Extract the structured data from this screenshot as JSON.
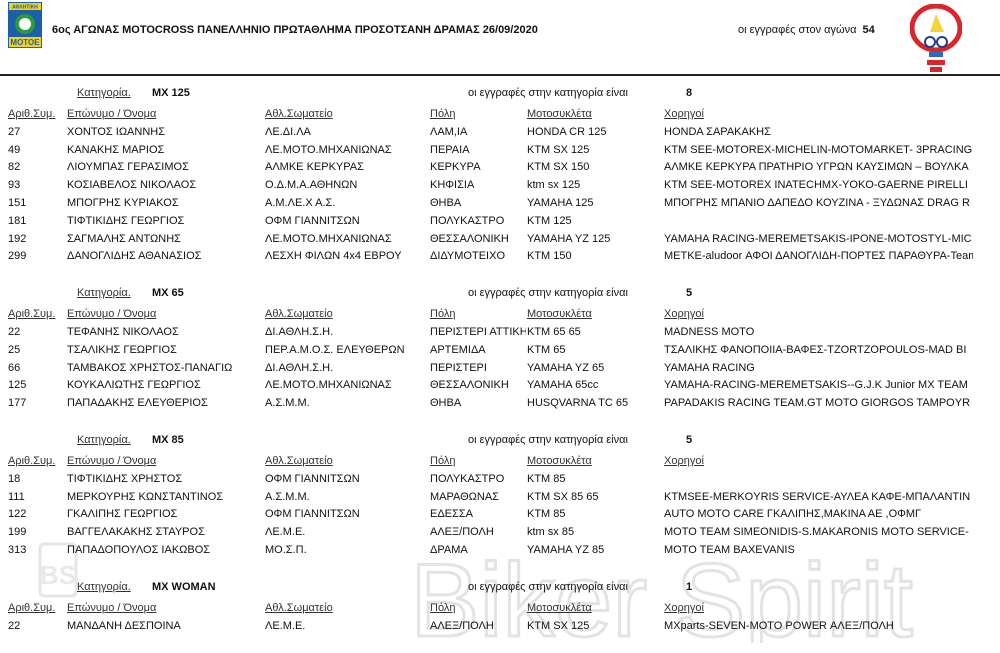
{
  "header": {
    "title": "6ος ΑΓΩΝΑΣ  MOTOCROSS ΠΑΝΕΛΛΗΝΙΟ ΠΡΩΤΑΘΛΗΜΑ ΠΡΟΣΟΤΣΑΝΗ ΔΡΑΜΑΣ 26/09/2020",
    "entries_label": "οι εγγραφές στον αγώνα",
    "entries_count": "54",
    "left_logo_text": [
      "ΑΘΛΗΤΙΚΗ",
      "MOTOE"
    ],
    "watermark": "Biker Spirit",
    "watermark_logo": "BS"
  },
  "labels": {
    "category": "Κατηγορία.",
    "count_label": "οι εγγραφές στην κατηγορία είναι",
    "columns": [
      "Αριθ.Συμ.",
      "Επώνυμο / Όνομα",
      "Αθλ.Σωματείο",
      "Πόλη",
      "Μοτοσυκλέτα",
      "Χορηγοί"
    ]
  },
  "sections": [
    {
      "category": "MX 125",
      "count": "8",
      "rows": [
        [
          "27",
          "ΧΟΝΤΟΣ ΙΩΑΝΝΗΣ",
          "ΛΕ.ΔΙ.ΛΑ",
          "ΛΑΜ,ΙΑ",
          "HONDA CR 125",
          "HONDA ΣΑΡΑΚΑΚΗΣ"
        ],
        [
          "49",
          "ΚΑΝΑΚΗΣ ΜΑΡΙΟΣ",
          "ΛΕ.ΜΟΤΟ.ΜΗΧΑΝΙΩΝΑΣ",
          "ΠΕΡΑΙΑ",
          "KTM SX 125",
          "KTM SEE-MOTOREX-MICHELIN-MOTOMARKET- 3PRACING"
        ],
        [
          "82",
          "ΛΙΟΥΜΠΑΣ ΓΕΡΑΣΙΜΟΣ",
          "ΑΛΜΚΕ ΚΕΡΚΥΡΑΣ",
          "ΚΕΡΚΥΡΑ",
          "KTM SX 150",
          "ΑΛΜΚΕ ΚΕΡΚΥΡΑ ΠΡΑΤΗΡΙΟ ΥΓΡΩΝ ΚΑΥΣΙΜΩΝ – ΒΟΥΛΚΑ"
        ],
        [
          "93",
          "ΚΟΣΙΑΒΕΛΟΣ ΝΙΚΟΛΑΟΣ",
          "Ο.Δ.Μ.Α.ΑΘΗΝΩΝ",
          "ΚΗΦΙΣΙΑ",
          "ktm sx 125",
          "KTM SEE-MOTOREX INATECHMX-YOKO-GAERNE PIRELLI"
        ],
        [
          "151",
          "ΜΠΟΓΡΗΣ ΚΥΡΙΑΚΟΣ",
          "Α.Μ.ΛΕ.Χ  Α.Σ.",
          "ΘΗΒΑ",
          "YAMAHA 125",
          "ΜΠΟΓΡΗΣ ΜΠΑΝΙΟ ΔΑΠΕΔΟ ΚΟΥΖΙΝΑ - ΞΥΔΩΝΑΣ DRAG R"
        ],
        [
          "181",
          "ΤΙΦΤΙΚΙΔΗΣ ΓΕΩΡΓΙΟΣ",
          "ΟΦΜ ΓΙΑΝΝΙΤΣΩΝ",
          "ΠΟΛΥΚΑΣΤΡΟ",
          "KTM 125",
          ""
        ],
        [
          "192",
          "ΣΑΓΜΑΛΗΣ ΑΝΤΩΝΗΣ",
          "ΛΕ.ΜΟΤΟ.ΜΗΧΑΝΙΩΝΑΣ",
          "ΘΕΣΣΑΛΟΝΙΚΗ",
          "YAMAHA YZ 125",
          "YAMAHA RACING-MEREMETSAKIS-IPONE-MOTOSTYL-MIC"
        ],
        [
          "299",
          "ΔΑΝΟΓΛΙΔΗΣ ΑΘΑΝΑΣΙΟΣ",
          "ΛΕΣΧΗ ΦΙΛΩΝ 4x4 ΕΒΡΟΥ",
          "ΔΙΔΥΜΟΤΕΙΧΟ",
          "KTM 150",
          "ΜΕΤΚΕ-aludoor ΑΦΟΙ ΔΑΝΟΓΛΙΔΗ-ΠΟΡΤΕΣ ΠΑΡΑΘΥΡΑ-Team"
        ]
      ]
    },
    {
      "category": "MX 65",
      "count": "5",
      "rows": [
        [
          "22",
          "ΤΕΦΑΝΗΣ ΝΙΚΟΛΑΟΣ",
          "ΔΙ.ΑΘΛΗ.Σ.Η.",
          "ΠΕΡΙΣΤΕΡΙ ΑΤΤΙΚΗ",
          "KTM 65 65",
          "MADNESS MOTO"
        ],
        [
          "25",
          "ΤΣΑΛΙΚΗΣ ΓΕΩΡΓΙΟΣ",
          "ΠΕΡ.Α.Μ.Ο.Σ. ΕΛΕΥΘΕΡΩΝ",
          "ΑΡΤΕΜΙΔΑ",
          "KTM 65",
          "ΤΣΑΛΙΚΗΣ ΦΑΝΟΠΟΙΙΑ-ΒΑΦΕΣ-TZORTZOPOULOS-MAD BI"
        ],
        [
          "66",
          "ΤΑΜΒΑΚΟΣ ΧΡΗΣΤΟΣ-ΠΑΝΑΓΙΩ",
          "ΔΙ.ΑΘΛΗ.Σ.Η.",
          "ΠΕΡΙΣΤΕΡΙ",
          "YAMAHA YZ 65",
          "YAMAHA RACING"
        ],
        [
          "125",
          "ΚΟΥΚΑΛΙΩΤΗΣ ΓΕΩΡΓΙΟΣ",
          "ΛΕ.ΜΟΤΟ.ΜΗΧΑΝΙΩΝΑΣ",
          "ΘΕΣΣΑΛΟΝΙΚΗ",
          "YAMAHA 65cc",
          "YAMAHA-RACING-MEREMETSAKIS--G.J.K Junior MX TEAM"
        ],
        [
          "177",
          "ΠΑΠΑΔΑΚΗΣ ΕΛΕΥΘΕΡΙΟΣ",
          "Α.Σ.Μ.Μ.",
          "ΘΗΒΑ",
          "HUSQVARNA TC 65",
          "PAPADAKIS RACING TEAM.GT MOTO GIORGOS TAMPOYR"
        ]
      ]
    },
    {
      "category": "MX 85",
      "count": "5",
      "rows": [
        [
          "18",
          "ΤΙΦΤΙΚΙΔΗΣ ΧΡΗΣΤΟΣ",
          "ΟΦΜ ΓΙΑΝΝΙΤΣΩΝ",
          "ΠΟΛΥΚΑΣΤΡΟ",
          "KTM 85",
          ""
        ],
        [
          "111",
          "ΜΕΡΚΟΥΡΗΣ ΚΩΝΣΤΑΝΤΙΝΟΣ",
          "Α.Σ.Μ.Μ.",
          "ΜΑΡΑΘΩΝΑΣ",
          "KTM SX 85 65",
          "KTMSEE-MERKOYRIS SERVICE-ΑΥΛΕΑ ΚΑΦΕ-ΜΠΑΛΑΝΤΙΝ"
        ],
        [
          "122",
          "ΓΚΑΛΙΠΗΣ ΓΕΩΡΓΙΟΣ",
          "ΟΦΜ ΓΙΑΝΝΙΤΣΩΝ",
          "ΕΔΕΣΣΑ",
          "KTM 85",
          "AUTO MOTO CARE ΓΚΑΛΙΠΗΣ,ΜΑΚΙΝΑ ΑΕ ,ΟΦΜΓ"
        ],
        [
          "199",
          "ΒΑΓΓΕΛΑΚΑΚΗΣ ΣΤΑΥΡΟΣ",
          "ΛΕ.Μ.Ε.",
          "ΑΛΕΞ/ΠΟΛΗ",
          "ktm sx 85",
          "MOTO TEAM SIMEONIDIS-S.MAKARONIS MOTO SERVICE-"
        ],
        [
          "313",
          "ΠΑΠΑΔΟΠΟΥΛΟΣ ΙΑΚΩΒΟΣ",
          "ΜΟ.Σ.Π.",
          "ΔΡΑΜΑ",
          "YAMAHA YZ 85",
          "MOTO TEAM BAXEVANIS"
        ]
      ]
    },
    {
      "category": "MX WOMAN",
      "count": "1",
      "rows": [
        [
          "22",
          "ΜΑΝΔΑΝΗ ΔΕΣΠΟΙΝΑ",
          "ΛΕ.Μ.Ε.",
          "ΑΛΕΞ/ΠΟΛΗ",
          "KTM SX 125",
          "MXparts-SEVEN-MOTO POWER ΑΛΕΞ/ΠΟΛΗ"
        ]
      ]
    }
  ]
}
